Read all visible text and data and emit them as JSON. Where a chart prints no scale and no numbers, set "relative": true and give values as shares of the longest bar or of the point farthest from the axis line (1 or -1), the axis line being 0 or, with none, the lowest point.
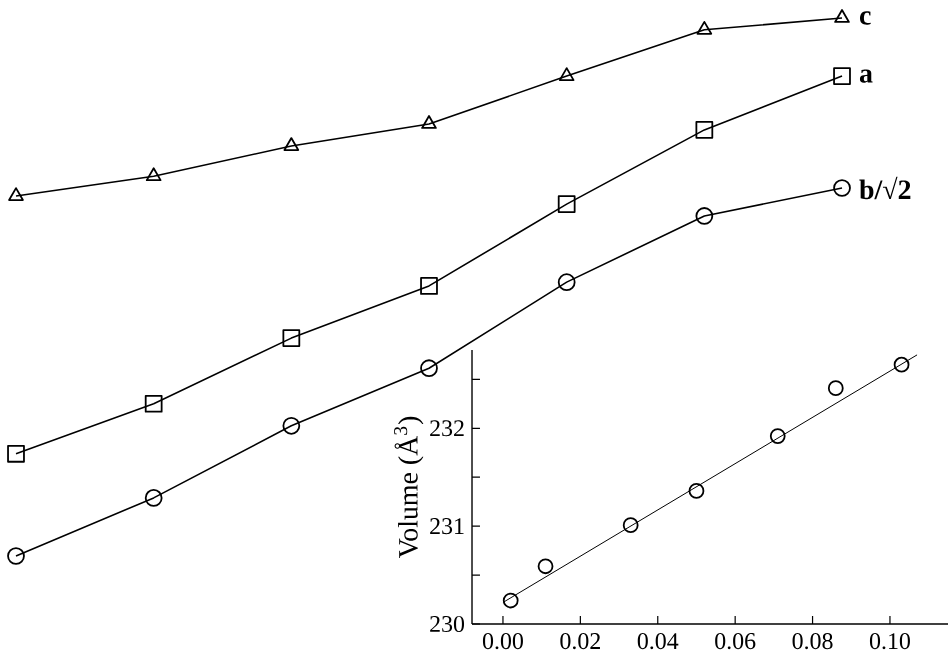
{
  "chart_data": [
    {
      "type": "line",
      "relative": true,
      "categories": [
        null,
        null,
        null,
        null,
        null,
        null,
        null
      ],
      "series": [
        {
          "name": "c",
          "color": "#000000",
          "marker": "triangle",
          "values": [
            0.669,
            0.706,
            0.762,
            0.803,
            0.892,
            0.978,
            1
          ]
        },
        {
          "name": "a",
          "color": "#000000",
          "marker": "square",
          "values": [
            0.19,
            0.283,
            0.405,
            0.502,
            0.654,
            0.792,
            0.892
          ]
        },
        {
          "name": "b/√2",
          "color": "#000000",
          "marker": "circle",
          "values": [
            0,
            0.108,
            0.242,
            0.349,
            0.509,
            0.632,
            0.684
          ]
        }
      ]
    },
    {
      "type": "scatter",
      "ylabel": "Volume (Å$^{3}$)",
      "xlim": [
        -0.008,
        0.115
      ],
      "ylim": [
        230,
        232.8
      ],
      "xticks": [
        {
          "value": 0,
          "label": "0.00"
        },
        {
          "value": 0.02,
          "label": "0.02"
        },
        {
          "value": 0.04,
          "label": "0.04"
        },
        {
          "value": 0.06,
          "label": "0.06"
        },
        {
          "value": 0.08,
          "label": "0.08"
        },
        {
          "value": 0.1,
          "label": "0.10"
        }
      ],
      "yticks": [
        230,
        {
          "value": 230.5,
          "label": null
        },
        231,
        {
          "value": 231.5,
          "label": null
        },
        232,
        {
          "value": 232.5,
          "label": null
        }
      ],
      "series": [
        {
          "type": "scatter",
          "color": "#000000",
          "marker": "circle",
          "x": [
            0.002,
            0.011,
            0.033,
            0.05,
            0.071,
            0.086,
            0.103
          ],
          "values": [
            230.24,
            230.59,
            231.01,
            231.36,
            231.92,
            232.41,
            232.65
          ]
        },
        {
          "type": "line",
          "color": "#000000",
          "marker": "none",
          "x": [
            0,
            0.107
          ],
          "values": [
            230.22,
            232.75
          ]
        }
      ]
    }
  ]
}
